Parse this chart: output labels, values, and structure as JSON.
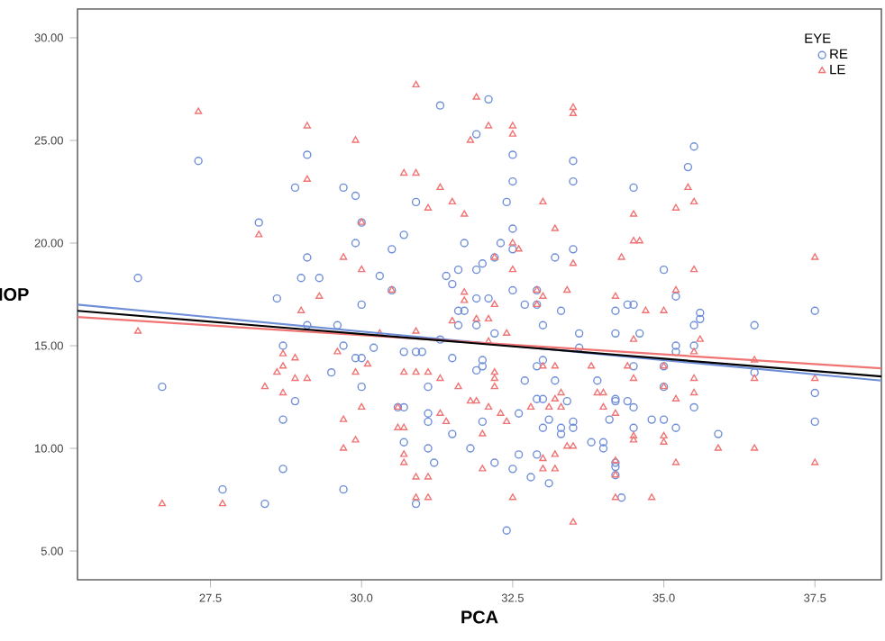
{
  "chart_data": {
    "type": "scatter",
    "xlabel": "PCA",
    "ylabel": "IOP",
    "legend_title": "EYE",
    "legend": "top right",
    "grid": false,
    "xlim": [
      25.3,
      38.6
    ],
    "ylim": [
      3.6,
      31.4
    ],
    "xticks": [
      {
        "value": 27.5,
        "label": "27.5"
      },
      {
        "value": 30,
        "label": "30.0"
      },
      {
        "value": 32.5,
        "label": "32.5"
      },
      {
        "value": 35,
        "label": "35.0"
      },
      {
        "value": 37.5,
        "label": "37.5"
      }
    ],
    "yticks": [
      {
        "value": 5,
        "label": "5.00"
      },
      {
        "value": 10,
        "label": "10.00"
      },
      {
        "value": 15,
        "label": "15.00"
      },
      {
        "value": 20,
        "label": "20.00"
      },
      {
        "value": 25,
        "label": "25.00"
      },
      {
        "value": 30,
        "label": "30.00"
      }
    ],
    "series": [
      {
        "name": "RE",
        "type": "scatter",
        "marker": "circle",
        "color": "#6f8fd8",
        "x": [
          27.3,
          29.1,
          28.9,
          29.7,
          29.9,
          28.3,
          29.9,
          29.1,
          26.3,
          29.0,
          29.3,
          28.6,
          31.3,
          32.1,
          31.9,
          32.5,
          33.5,
          32.5,
          33.5,
          30.9,
          32.4,
          30.0,
          32.5,
          30.7,
          30.5,
          31.7,
          32.3,
          32.5,
          33.5,
          33.2,
          32.0,
          32.2,
          30.3,
          31.6,
          31.9,
          31.4,
          31.5,
          30.5,
          32.5,
          31.9,
          32.1,
          32.7,
          32.9,
          32.9,
          33.3,
          34.2,
          30.0,
          31.6,
          31.7,
          35.5,
          35.4,
          34.5,
          35.0,
          35.2,
          34.4,
          34.5,
          35.6,
          37.5,
          29.1,
          29.6,
          28.7,
          29.7,
          29.5,
          29.9,
          30.0,
          26.7,
          30.0,
          28.9,
          28.7,
          28.7,
          27.7,
          29.7,
          28.4,
          30.2,
          30.7,
          30.9,
          31.0,
          31.3,
          31.5,
          30.6,
          30.7,
          31.1,
          31.1,
          31.1,
          31.5,
          30.7,
          31.1,
          31.2,
          30.9,
          31.6,
          31.9,
          32.2,
          33.0,
          33.6,
          32.0,
          32.0,
          31.9,
          32.0,
          31.8,
          32.2,
          32.4,
          32.5,
          32.8,
          32.6,
          32.9,
          33.1,
          33.3,
          33.3,
          33.5,
          33.5,
          33.0,
          33.1,
          32.6,
          32.9,
          33.0,
          33.2,
          33.4,
          32.9,
          33.0,
          32.7,
          33.6,
          33.9,
          34.2,
          34.1,
          33.8,
          34.0,
          34.0,
          34.2,
          34.2,
          34.6,
          34.5,
          35.0,
          35.0,
          35.2,
          35.2,
          35.5,
          35.5,
          35.6,
          36.5,
          36.5,
          37.5,
          37.5,
          34.2,
          34.4,
          34.5,
          34.5,
          35.5,
          34.8,
          35.0,
          35.2,
          35.9,
          34.2,
          34.2,
          34.3
        ],
        "values": [
          24.0,
          24.3,
          22.7,
          22.7,
          22.3,
          21.0,
          20.0,
          19.3,
          18.3,
          18.3,
          18.3,
          17.3,
          26.7,
          27.0,
          25.3,
          24.3,
          24.0,
          23.0,
          23.0,
          22.0,
          22.0,
          21.0,
          20.7,
          20.4,
          19.7,
          20.0,
          20.0,
          19.7,
          19.7,
          19.3,
          19.0,
          19.3,
          18.4,
          18.7,
          18.7,
          18.4,
          18.0,
          17.7,
          17.7,
          17.3,
          17.3,
          17.0,
          17.7,
          17.0,
          16.7,
          16.7,
          17.0,
          16.7,
          16.7,
          24.7,
          23.7,
          22.7,
          18.7,
          17.4,
          17.0,
          17.0,
          16.6,
          16.7,
          16.0,
          16.0,
          15.0,
          15.0,
          13.7,
          14.4,
          14.4,
          13.0,
          13.0,
          12.3,
          11.4,
          9.0,
          8.0,
          8.0,
          7.3,
          14.9,
          14.7,
          14.7,
          14.7,
          15.3,
          14.4,
          12.0,
          12.0,
          13.0,
          11.7,
          11.3,
          10.7,
          10.3,
          10.0,
          9.3,
          7.3,
          16.0,
          16.0,
          15.6,
          16.0,
          15.6,
          14.3,
          14.0,
          13.8,
          11.3,
          10.0,
          9.3,
          6.0,
          9.0,
          8.6,
          9.7,
          9.7,
          8.3,
          11.0,
          10.7,
          11.3,
          11.0,
          11.0,
          11.4,
          11.7,
          12.4,
          12.4,
          13.3,
          12.3,
          14.0,
          14.3,
          13.3,
          14.9,
          13.3,
          12.4,
          11.4,
          10.3,
          10.3,
          10.0,
          9.1,
          15.6,
          15.6,
          14.0,
          14.0,
          13.0,
          15.0,
          14.7,
          15.0,
          16.0,
          16.3,
          16.0,
          13.7,
          12.7,
          11.3,
          12.3,
          12.3,
          12.0,
          11.0,
          12.0,
          11.4,
          11.4,
          11.0,
          10.7,
          9.3,
          8.7,
          7.6
        ]
      },
      {
        "name": "LE",
        "type": "scatter",
        "marker": "triangle",
        "color": "#f07474",
        "x": [
          27.3,
          29.1,
          29.9,
          29.1,
          28.3,
          29.7,
          30.0,
          29.3,
          29.0,
          30.9,
          31.9,
          31.8,
          32.1,
          32.5,
          32.5,
          33.5,
          33.5,
          30.7,
          30.9,
          31.3,
          31.1,
          31.5,
          31.7,
          33.0,
          30.0,
          33.2,
          32.5,
          32.6,
          33.5,
          32.2,
          32.5,
          30.5,
          33.4,
          31.7,
          31.7,
          32.2,
          32.9,
          32.9,
          33.0,
          34.2,
          35.4,
          35.2,
          35.5,
          34.5,
          34.5,
          34.6,
          34.3,
          37.5,
          35.5,
          35.2,
          34.7,
          35.0,
          26.3,
          29.6,
          28.7,
          28.9,
          28.7,
          28.6,
          28.9,
          29.1,
          28.4,
          28.7,
          29.7,
          29.9,
          29.7,
          26.7,
          27.7,
          30.3,
          30.9,
          30.1,
          29.9,
          30.7,
          30.9,
          31.1,
          30.0,
          30.6,
          31.3,
          31.6,
          31.3,
          31.4,
          30.6,
          30.7,
          30.7,
          30.7,
          30.9,
          31.1,
          30.9,
          31.1,
          31.5,
          31.9,
          32.1,
          32.4,
          32.1,
          32.2,
          32.2,
          32.2,
          31.8,
          31.9,
          32.1,
          32.4,
          32.0,
          32.0,
          32.5,
          33.0,
          33.2,
          33.0,
          33.2,
          33.5,
          33.4,
          33.5,
          32.3,
          32.8,
          33.1,
          33.2,
          33.3,
          33.3,
          33.0,
          33.2,
          33.8,
          33.9,
          34.0,
          34.0,
          34.2,
          34.2,
          34.5,
          34.4,
          34.5,
          35.0,
          35.0,
          35.5,
          35.6,
          36.5,
          36.5,
          37.5,
          37.5,
          34.2,
          34.5,
          34.5,
          35.2,
          35.5,
          35.5,
          35.0,
          35.0,
          35.9,
          36.5,
          35.2,
          34.2,
          34.8
        ],
        "values": [
          26.4,
          25.7,
          25.0,
          23.1,
          20.4,
          19.3,
          18.7,
          17.4,
          16.7,
          27.7,
          27.1,
          25.0,
          25.7,
          25.7,
          25.3,
          26.6,
          26.3,
          23.4,
          23.4,
          22.7,
          21.7,
          22.0,
          21.4,
          22.0,
          21.0,
          20.7,
          20.0,
          19.7,
          19.0,
          19.3,
          18.7,
          17.7,
          17.7,
          17.6,
          17.2,
          17.0,
          17.7,
          17.0,
          17.4,
          17.4,
          22.7,
          21.7,
          22.0,
          21.4,
          20.1,
          20.1,
          19.3,
          19.3,
          18.7,
          17.7,
          16.7,
          16.7,
          15.7,
          14.7,
          14.6,
          14.4,
          14.0,
          13.7,
          13.4,
          13.4,
          13.0,
          12.7,
          11.4,
          10.4,
          10.0,
          7.3,
          7.3,
          15.6,
          15.7,
          14.1,
          13.7,
          13.7,
          13.7,
          13.7,
          12.0,
          12.0,
          13.4,
          13.0,
          11.7,
          11.3,
          11.0,
          11.0,
          9.7,
          9.3,
          8.6,
          8.6,
          7.6,
          7.6,
          16.2,
          16.3,
          16.3,
          15.6,
          15.2,
          13.7,
          13.4,
          13.0,
          12.3,
          12.3,
          12.0,
          11.3,
          10.7,
          9.0,
          7.6,
          9.0,
          9.0,
          9.5,
          9.7,
          6.4,
          10.1,
          10.1,
          11.7,
          12.0,
          12.0,
          12.4,
          12.7,
          12.0,
          14.0,
          14.0,
          14.0,
          12.7,
          12.7,
          12.0,
          8.7,
          9.4,
          15.3,
          14.0,
          13.4,
          14.0,
          13.0,
          14.7,
          15.3,
          14.3,
          13.4,
          13.4,
          9.3,
          11.7,
          10.6,
          10.4,
          12.4,
          13.4,
          12.7,
          10.6,
          10.3,
          10.0,
          10.0,
          9.3,
          7.6,
          7.6
        ]
      },
      {
        "type": "line",
        "marker": "none",
        "line_style": "solid",
        "color": "#6f8fd8",
        "x": [
          25.3,
          38.6
        ],
        "values": [
          17.0,
          13.3
        ]
      },
      {
        "type": "line",
        "marker": "none",
        "line_style": "solid",
        "color": "#f07474",
        "x": [
          25.3,
          38.6
        ],
        "values": [
          16.4,
          13.9
        ]
      },
      {
        "type": "line",
        "marker": "none",
        "line_style": "solid",
        "color": "#000000",
        "x": [
          25.3,
          38.6
        ],
        "values": [
          16.7,
          13.5
        ]
      }
    ]
  }
}
